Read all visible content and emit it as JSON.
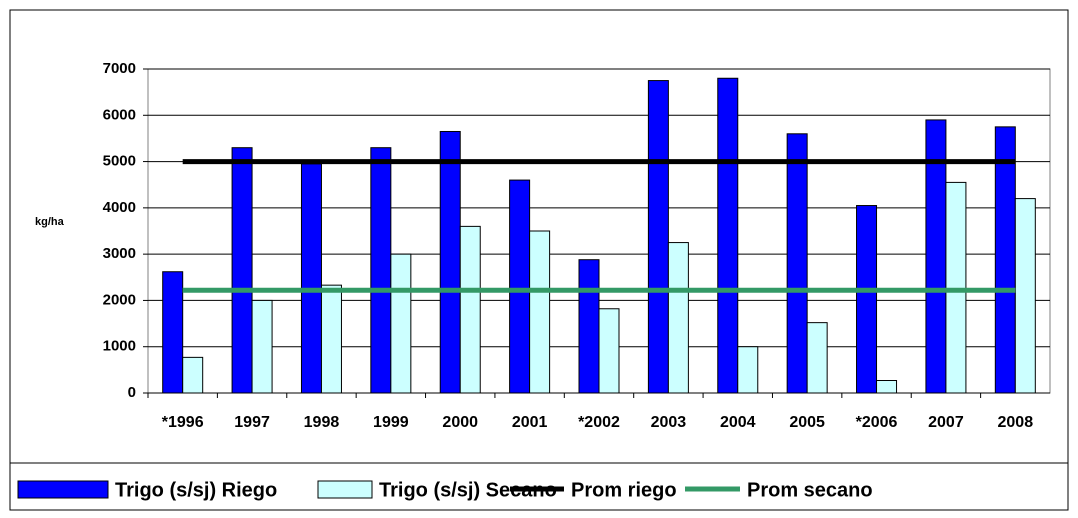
{
  "chart_data": {
    "type": "bar",
    "y_label": "kg/ha",
    "categories": [
      "*1996",
      "1997",
      "1998",
      "1999",
      "2000",
      "2001",
      "*2002",
      "2003",
      "2004",
      "2005",
      "*2006",
      "2007",
      "2008"
    ],
    "series": [
      {
        "name": "Trigo (s/sj) Riego",
        "type": "bar",
        "color": "#0000ff",
        "values": [
          2620,
          5300,
          4950,
          5300,
          5650,
          4600,
          2880,
          6750,
          6800,
          5600,
          4050,
          5900,
          5750
        ]
      },
      {
        "name": "Trigo (s/sj) Secano",
        "type": "bar",
        "color": "#ccffff",
        "values": [
          770,
          2000,
          2330,
          3000,
          3600,
          3500,
          1820,
          3250,
          1000,
          1520,
          270,
          4550,
          4200
        ]
      },
      {
        "name": "Prom riego",
        "type": "line",
        "color": "#000000",
        "values": [
          5000,
          5000,
          5000,
          5000,
          5000,
          5000,
          5000,
          5000,
          5000,
          5000,
          5000,
          5000,
          5000
        ]
      },
      {
        "name": "Prom secano",
        "type": "line",
        "color": "#339966",
        "values": [
          2220,
          2220,
          2220,
          2220,
          2220,
          2220,
          2220,
          2220,
          2220,
          2220,
          2220,
          2220,
          2220
        ]
      }
    ],
    "ylim": [
      0,
      7000
    ],
    "yticks": [
      0,
      1000,
      2000,
      3000,
      4000,
      5000,
      6000,
      7000
    ],
    "grid": true,
    "legend": "bottom"
  }
}
